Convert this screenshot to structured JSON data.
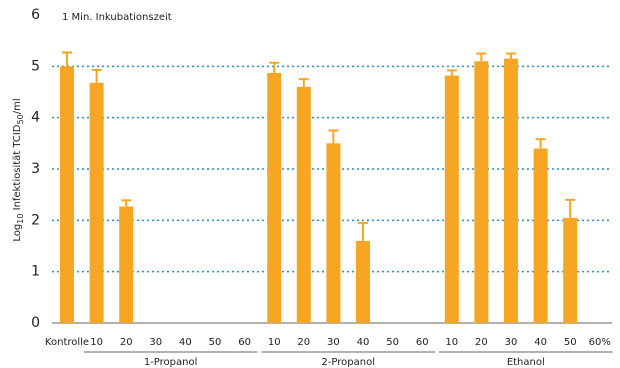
{
  "chart_data": {
    "type": "bar",
    "annotation": "1 Min. Inkubationszeit",
    "ylabel_parts": [
      "Log",
      "10",
      " Infektiosität TCID",
      "50",
      "/ml"
    ],
    "ylim": [
      0,
      6
    ],
    "yticks": [
      0,
      1,
      2,
      3,
      4,
      5,
      6
    ],
    "grid": true,
    "color": "#f6a623",
    "categories": [
      "Kontrolle"
    ],
    "values": [
      5.0
    ],
    "errors": [
      0.27
    ],
    "groups": [
      {
        "label": "1-Propanol",
        "categories": [
          "10",
          "20",
          "30",
          "40",
          "50",
          "60"
        ],
        "values": [
          4.68,
          2.27,
          null,
          null,
          null,
          null
        ],
        "errors": [
          0.25,
          0.12,
          null,
          null,
          null,
          null
        ]
      },
      {
        "label": "2-Propanol",
        "categories": [
          "10",
          "20",
          "30",
          "40",
          "50",
          "60"
        ],
        "values": [
          4.87,
          4.6,
          3.5,
          1.6,
          null,
          null
        ],
        "errors": [
          0.2,
          0.15,
          0.25,
          0.35,
          null,
          null
        ]
      },
      {
        "label": "Ethanol",
        "categories": [
          "10",
          "20",
          "30",
          "40",
          "50",
          "60%"
        ],
        "values": [
          4.82,
          5.1,
          5.15,
          3.4,
          2.05,
          null
        ],
        "errors": [
          0.1,
          0.15,
          0.1,
          0.18,
          0.35,
          null
        ]
      }
    ]
  }
}
